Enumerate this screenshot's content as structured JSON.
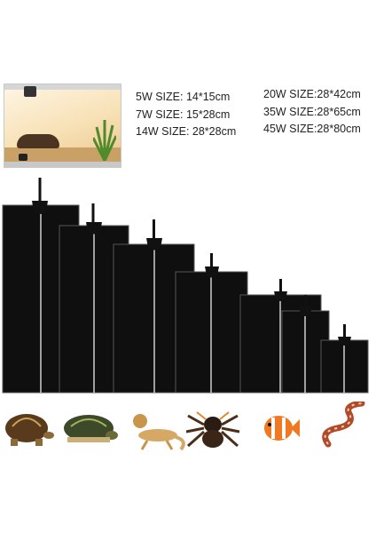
{
  "sizes_left": [
    "5W SIZE: 14*15cm",
    "7W SIZE: 15*28cm",
    "14W SIZE: 28*28cm"
  ],
  "sizes_right": [
    "20W SIZE:28*42cm",
    "35W SIZE:28*65cm",
    "45W SIZE:28*80cm"
  ],
  "animals": [
    "tortoise-icon",
    "turtle-icon",
    "bearded-dragon-icon",
    "tarantula-icon",
    "clownfish-icon",
    "snake-icon"
  ],
  "colors": {
    "mat": "#0f0f0f",
    "mat_edge": "#444444",
    "text": "#222222"
  }
}
